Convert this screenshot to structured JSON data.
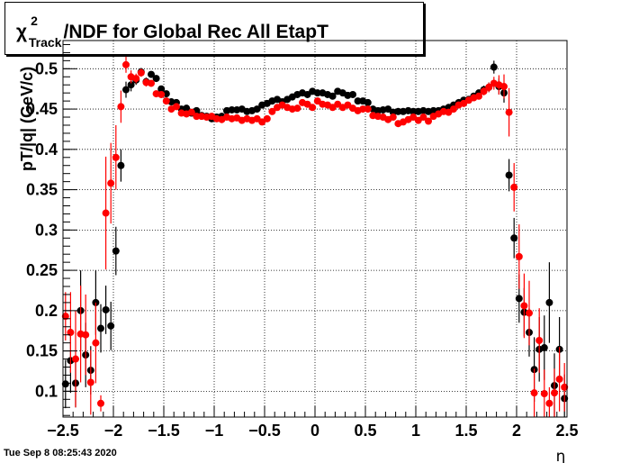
{
  "chart_data": {
    "type": "scatter",
    "title": {
      "symbol": "χ",
      "superscript": "2",
      "subscript": "Track",
      "rest": "/NDF for Global Rec All EtapT"
    },
    "xlabel": "η",
    "ylabel": "pT/|q| (GeV/c)",
    "xlim": [
      -2.5,
      2.5
    ],
    "ylim": [
      0.068,
      0.535
    ],
    "x_ticks": [
      {
        "v": -2.5,
        "label": "−2.5"
      },
      {
        "v": -2,
        "label": "−2"
      },
      {
        "v": -1.5,
        "label": "−1.5"
      },
      {
        "v": -1,
        "label": "−1"
      },
      {
        "v": -0.5,
        "label": "−0.5"
      },
      {
        "v": 0,
        "label": "0"
      },
      {
        "v": 0.5,
        "label": "0.5"
      },
      {
        "v": 1,
        "label": "1"
      },
      {
        "v": 1.5,
        "label": "1.5"
      },
      {
        "v": 2,
        "label": "2"
      },
      {
        "v": 2.5,
        "label": "2.5"
      }
    ],
    "y_ticks": [
      {
        "v": 0.1,
        "label": "0.1"
      },
      {
        "v": 0.15,
        "label": "0.15"
      },
      {
        "v": 0.2,
        "label": "0.2"
      },
      {
        "v": 0.25,
        "label": "0.25"
      },
      {
        "v": 0.3,
        "label": "0.3"
      },
      {
        "v": 0.35,
        "label": "0.35"
      },
      {
        "v": 0.4,
        "label": "0.4"
      },
      {
        "v": 0.45,
        "label": "0.45"
      },
      {
        "v": 0.5,
        "label": "0.5"
      }
    ],
    "grid": true,
    "series": [
      {
        "color": "#000000",
        "points": [
          [
            -2.475,
            0.109,
            0.03
          ],
          [
            -2.425,
            0.138,
            0.04
          ],
          [
            -2.375,
            0.11,
            0.03
          ],
          [
            -2.325,
            0.2,
            0.05
          ],
          [
            -2.275,
            0.145,
            0.04
          ],
          [
            -2.225,
            0.126,
            0.03
          ],
          [
            -2.175,
            0.21,
            0.04
          ],
          [
            -2.125,
            0.178,
            0.03
          ],
          [
            -2.075,
            0.201,
            0.03
          ],
          [
            -2.025,
            0.181,
            0.03
          ],
          [
            -1.975,
            0.274,
            0.03
          ],
          [
            -1.925,
            0.38,
            0.02
          ],
          [
            -1.875,
            0.474,
            0.01
          ],
          [
            -1.825,
            0.48,
            0.008
          ],
          [
            -1.775,
            0.486,
            0.006
          ],
          [
            -1.725,
            0.496,
            0.005
          ],
          [
            -1.675,
            0.484,
            0.005
          ],
          [
            -1.625,
            0.493,
            0.004
          ],
          [
            -1.575,
            0.488,
            0.004
          ],
          [
            -1.525,
            0.475,
            0.004
          ],
          [
            -1.475,
            0.469,
            0.003
          ],
          [
            -1.425,
            0.459,
            0.003
          ],
          [
            -1.375,
            0.458,
            0.003
          ],
          [
            -1.325,
            0.45,
            0.003
          ],
          [
            -1.275,
            0.451,
            0.003
          ],
          [
            -1.225,
            0.445,
            0.003
          ],
          [
            -1.175,
            0.448,
            0.003
          ],
          [
            -1.125,
            0.442,
            0.003
          ],
          [
            -1.075,
            0.441,
            0.003
          ],
          [
            -1.025,
            0.438,
            0.003
          ],
          [
            -0.975,
            0.44,
            0.003
          ],
          [
            -0.925,
            0.441,
            0.003
          ],
          [
            -0.875,
            0.448,
            0.003
          ],
          [
            -0.825,
            0.449,
            0.003
          ],
          [
            -0.775,
            0.449,
            0.003
          ],
          [
            -0.725,
            0.45,
            0.003
          ],
          [
            -0.675,
            0.447,
            0.003
          ],
          [
            -0.625,
            0.448,
            0.003
          ],
          [
            -0.575,
            0.45,
            0.003
          ],
          [
            -0.525,
            0.455,
            0.003
          ],
          [
            -0.475,
            0.457,
            0.003
          ],
          [
            -0.425,
            0.46,
            0.003
          ],
          [
            -0.375,
            0.462,
            0.003
          ],
          [
            -0.325,
            0.459,
            0.003
          ],
          [
            -0.275,
            0.462,
            0.003
          ],
          [
            -0.225,
            0.465,
            0.003
          ],
          [
            -0.175,
            0.468,
            0.003
          ],
          [
            -0.125,
            0.47,
            0.003
          ],
          [
            -0.075,
            0.468,
            0.003
          ],
          [
            -0.025,
            0.472,
            0.003
          ],
          [
            0.025,
            0.47,
            0.003
          ],
          [
            0.075,
            0.47,
            0.003
          ],
          [
            0.125,
            0.468,
            0.003
          ],
          [
            0.175,
            0.466,
            0.003
          ],
          [
            0.225,
            0.472,
            0.003
          ],
          [
            0.275,
            0.47,
            0.003
          ],
          [
            0.325,
            0.467,
            0.003
          ],
          [
            0.375,
            0.468,
            0.003
          ],
          [
            0.425,
            0.46,
            0.003
          ],
          [
            0.475,
            0.46,
            0.003
          ],
          [
            0.525,
            0.458,
            0.003
          ],
          [
            0.575,
            0.45,
            0.003
          ],
          [
            0.625,
            0.448,
            0.003
          ],
          [
            0.675,
            0.449,
            0.003
          ],
          [
            0.725,
            0.45,
            0.003
          ],
          [
            0.775,
            0.446,
            0.003
          ],
          [
            0.825,
            0.447,
            0.003
          ],
          [
            0.875,
            0.447,
            0.003
          ],
          [
            0.925,
            0.448,
            0.003
          ],
          [
            0.975,
            0.447,
            0.003
          ],
          [
            1.025,
            0.447,
            0.003
          ],
          [
            1.075,
            0.448,
            0.003
          ],
          [
            1.125,
            0.447,
            0.003
          ],
          [
            1.175,
            0.448,
            0.003
          ],
          [
            1.225,
            0.448,
            0.003
          ],
          [
            1.275,
            0.45,
            0.003
          ],
          [
            1.325,
            0.452,
            0.003
          ],
          [
            1.375,
            0.455,
            0.003
          ],
          [
            1.425,
            0.458,
            0.003
          ],
          [
            1.475,
            0.461,
            0.004
          ],
          [
            1.525,
            0.462,
            0.004
          ],
          [
            1.575,
            0.466,
            0.004
          ],
          [
            1.625,
            0.47,
            0.004
          ],
          [
            1.675,
            0.474,
            0.005
          ],
          [
            1.725,
            0.477,
            0.006
          ],
          [
            1.775,
            0.502,
            0.008
          ],
          [
            1.825,
            0.478,
            0.01
          ],
          [
            1.875,
            0.47,
            0.012
          ],
          [
            1.925,
            0.368,
            0.02
          ],
          [
            1.975,
            0.29,
            0.025
          ],
          [
            2.025,
            0.215,
            0.03
          ],
          [
            2.075,
            0.198,
            0.03
          ],
          [
            2.125,
            0.173,
            0.03
          ],
          [
            2.175,
            0.127,
            0.04
          ],
          [
            2.225,
            0.152,
            0.04
          ],
          [
            2.275,
            0.154,
            0.04
          ],
          [
            2.325,
            0.21,
            0.05
          ],
          [
            2.375,
            0.107,
            0.04
          ],
          [
            2.425,
            0.152,
            0.04
          ],
          [
            2.475,
            0.091,
            0.03
          ]
        ]
      },
      {
        "color": "#ff0000",
        "points": [
          [
            -2.475,
            0.193,
            0.03
          ],
          [
            -2.425,
            0.173,
            0.05
          ],
          [
            -2.375,
            0.14,
            0.06
          ],
          [
            -2.325,
            0.171,
            0.06
          ],
          [
            -2.275,
            0.17,
            0.05
          ],
          [
            -2.225,
            0.111,
            0.04
          ],
          [
            -2.175,
            0.16,
            0.05
          ],
          [
            -2.125,
            0.085,
            0.01
          ],
          [
            -2.075,
            0.321,
            0.07
          ],
          [
            -2.025,
            0.358,
            0.05
          ],
          [
            -1.975,
            0.39,
            0.04
          ],
          [
            -1.925,
            0.453,
            0.02
          ],
          [
            -1.875,
            0.505,
            0.01
          ],
          [
            -1.825,
            0.49,
            0.008
          ],
          [
            -1.775,
            0.488,
            0.006
          ],
          [
            -1.725,
            0.495,
            0.005
          ],
          [
            -1.675,
            0.483,
            0.005
          ],
          [
            -1.625,
            0.482,
            0.004
          ],
          [
            -1.575,
            0.469,
            0.004
          ],
          [
            -1.525,
            0.468,
            0.004
          ],
          [
            -1.475,
            0.46,
            0.003
          ],
          [
            -1.425,
            0.45,
            0.003
          ],
          [
            -1.375,
            0.453,
            0.003
          ],
          [
            -1.325,
            0.445,
            0.003
          ],
          [
            -1.275,
            0.444,
            0.003
          ],
          [
            -1.225,
            0.446,
            0.003
          ],
          [
            -1.175,
            0.441,
            0.003
          ],
          [
            -1.125,
            0.441,
            0.003
          ],
          [
            -1.075,
            0.44,
            0.003
          ],
          [
            -1.025,
            0.441,
            0.003
          ],
          [
            -0.975,
            0.438,
            0.003
          ],
          [
            -0.925,
            0.437,
            0.003
          ],
          [
            -0.875,
            0.44,
            0.003
          ],
          [
            -0.825,
            0.438,
            0.003
          ],
          [
            -0.775,
            0.439,
            0.003
          ],
          [
            -0.725,
            0.436,
            0.003
          ],
          [
            -0.675,
            0.438,
            0.003
          ],
          [
            -0.625,
            0.436,
            0.003
          ],
          [
            -0.575,
            0.438,
            0.003
          ],
          [
            -0.525,
            0.434,
            0.003
          ],
          [
            -0.475,
            0.438,
            0.003
          ],
          [
            -0.425,
            0.447,
            0.003
          ],
          [
            -0.375,
            0.452,
            0.003
          ],
          [
            -0.325,
            0.455,
            0.003
          ],
          [
            -0.275,
            0.452,
            0.003
          ],
          [
            -0.225,
            0.45,
            0.003
          ],
          [
            -0.175,
            0.451,
            0.003
          ],
          [
            -0.125,
            0.458,
            0.003
          ],
          [
            -0.075,
            0.456,
            0.003
          ],
          [
            -0.025,
            0.452,
            0.003
          ],
          [
            0.025,
            0.46,
            0.003
          ],
          [
            0.075,
            0.456,
            0.003
          ],
          [
            0.125,
            0.455,
            0.003
          ],
          [
            0.175,
            0.452,
            0.003
          ],
          [
            0.225,
            0.456,
            0.003
          ],
          [
            0.275,
            0.452,
            0.003
          ],
          [
            0.325,
            0.455,
            0.003
          ],
          [
            0.375,
            0.451,
            0.003
          ],
          [
            0.425,
            0.448,
            0.003
          ],
          [
            0.475,
            0.45,
            0.003
          ],
          [
            0.525,
            0.45,
            0.003
          ],
          [
            0.575,
            0.442,
            0.003
          ],
          [
            0.625,
            0.441,
            0.003
          ],
          [
            0.675,
            0.44,
            0.003
          ],
          [
            0.725,
            0.437,
            0.003
          ],
          [
            0.775,
            0.44,
            0.003
          ],
          [
            0.825,
            0.432,
            0.003
          ],
          [
            0.875,
            0.434,
            0.003
          ],
          [
            0.925,
            0.437,
            0.003
          ],
          [
            0.975,
            0.44,
            0.003
          ],
          [
            1.025,
            0.436,
            0.003
          ],
          [
            1.075,
            0.44,
            0.003
          ],
          [
            1.125,
            0.435,
            0.003
          ],
          [
            1.175,
            0.441,
            0.003
          ],
          [
            1.225,
            0.444,
            0.003
          ],
          [
            1.275,
            0.447,
            0.003
          ],
          [
            1.325,
            0.446,
            0.003
          ],
          [
            1.375,
            0.45,
            0.003
          ],
          [
            1.425,
            0.455,
            0.003
          ],
          [
            1.475,
            0.457,
            0.004
          ],
          [
            1.525,
            0.461,
            0.004
          ],
          [
            1.575,
            0.464,
            0.004
          ],
          [
            1.625,
            0.466,
            0.004
          ],
          [
            1.675,
            0.472,
            0.005
          ],
          [
            1.725,
            0.477,
            0.006
          ],
          [
            1.775,
            0.482,
            0.008
          ],
          [
            1.825,
            0.48,
            0.012
          ],
          [
            1.875,
            0.478,
            0.015
          ],
          [
            1.925,
            0.446,
            0.03
          ],
          [
            1.975,
            0.353,
            0.03
          ],
          [
            2.025,
            0.267,
            0.04
          ],
          [
            2.075,
            0.206,
            0.04
          ],
          [
            2.125,
            0.197,
            0.04
          ],
          [
            2.175,
            0.098,
            0.03
          ],
          [
            2.225,
            0.163,
            0.04
          ],
          [
            2.275,
            0.097,
            0.03
          ],
          [
            2.325,
            0.085,
            0.02
          ],
          [
            2.375,
            0.098,
            0.03
          ],
          [
            2.425,
            0.115,
            0.04
          ],
          [
            2.475,
            0.105,
            0.03
          ]
        ]
      }
    ]
  },
  "footer": {
    "date": "Tue Sep  8 08:25:43 2020"
  }
}
